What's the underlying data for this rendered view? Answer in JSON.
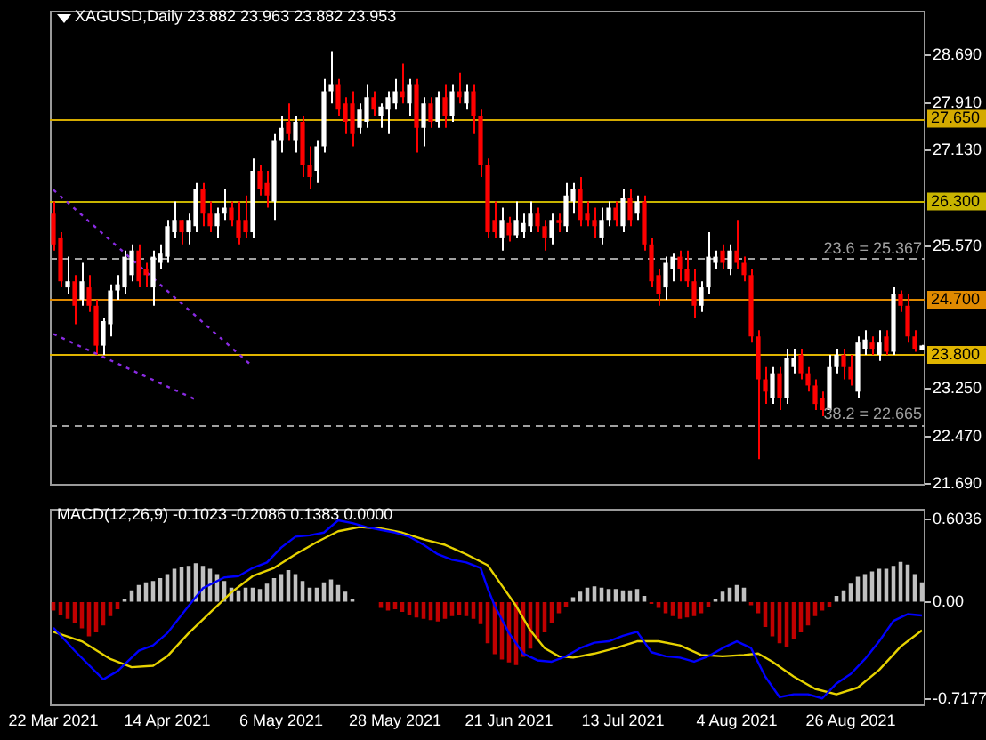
{
  "chart_data": [
    {
      "type": "candlestick",
      "title": "XAGUSD,Daily  23.882 23.963 23.882 23.953",
      "categories": [
        null,
        null,
        null,
        null,
        null,
        null,
        null,
        null,
        null,
        null,
        null,
        null,
        null,
        null,
        null,
        null,
        null,
        null,
        null,
        null,
        null,
        null,
        null,
        null,
        null,
        null,
        null,
        null,
        null,
        null,
        null,
        null,
        null,
        null,
        null,
        null,
        null,
        null,
        null,
        null,
        null,
        null,
        null,
        null,
        null,
        null,
        null,
        null,
        null,
        null,
        null,
        null,
        null,
        null,
        null,
        null,
        null,
        null,
        null,
        null,
        null,
        null,
        null,
        null,
        null,
        null,
        null,
        null,
        null,
        null,
        null,
        null,
        null,
        null,
        null,
        null,
        null,
        null,
        null,
        null,
        null,
        null,
        null,
        null,
        null,
        null,
        null,
        null,
        null,
        null,
        null,
        null,
        null,
        null,
        null,
        null,
        null,
        null,
        null,
        null,
        null,
        null,
        null,
        null,
        null,
        null,
        null,
        null,
        null,
        null,
        null,
        null,
        null,
        null,
        null,
        null,
        null,
        null,
        null,
        null,
        null,
        null,
        null
      ],
      "ohlc": [
        [
          26.1,
          26.3,
          25.5,
          25.6
        ],
        [
          25.7,
          25.8,
          24.9,
          25.0
        ],
        [
          24.9,
          25.4,
          24.8,
          25.0
        ],
        [
          25.0,
          25.1,
          24.3,
          24.6
        ],
        [
          24.7,
          25.3,
          24.6,
          25.0
        ],
        [
          24.9,
          25.1,
          24.5,
          24.6
        ],
        [
          24.6,
          24.7,
          23.8,
          23.95
        ],
        [
          23.95,
          24.4,
          23.8,
          24.35
        ],
        [
          24.3,
          24.95,
          24.1,
          24.85
        ],
        [
          24.85,
          25.1,
          24.7,
          24.95
        ],
        [
          24.9,
          25.5,
          24.8,
          25.4
        ],
        [
          25.1,
          25.6,
          25.0,
          25.5
        ],
        [
          25.5,
          25.6,
          24.9,
          25.0
        ],
        [
          25.2,
          25.3,
          24.9,
          25.1
        ],
        [
          24.9,
          25.5,
          24.6,
          25.4
        ],
        [
          25.3,
          25.6,
          25.2,
          25.45
        ],
        [
          25.4,
          26.0,
          25.3,
          25.9
        ],
        [
          25.8,
          26.3,
          25.7,
          26.0
        ],
        [
          26.0,
          26.0,
          25.6,
          25.8
        ],
        [
          25.8,
          26.1,
          25.6,
          26.0
        ],
        [
          25.9,
          26.6,
          25.8,
          26.5
        ],
        [
          26.5,
          26.6,
          25.9,
          26.1
        ],
        [
          26.1,
          26.3,
          25.8,
          25.9
        ],
        [
          25.9,
          26.2,
          25.7,
          26.1
        ],
        [
          26.1,
          26.5,
          26.0,
          26.2
        ],
        [
          26.2,
          26.3,
          25.9,
          26.0
        ],
        [
          26.0,
          26.3,
          25.6,
          25.7
        ],
        [
          26.0,
          26.4,
          25.7,
          25.8
        ],
        [
          25.8,
          27.0,
          25.7,
          26.8
        ],
        [
          26.8,
          26.9,
          26.4,
          26.5
        ],
        [
          26.6,
          26.8,
          26.2,
          26.4
        ],
        [
          26.3,
          27.4,
          26.0,
          27.3
        ],
        [
          27.3,
          27.7,
          27.1,
          27.5
        ],
        [
          27.6,
          27.9,
          27.3,
          27.4
        ],
        [
          27.3,
          27.7,
          27.1,
          27.6
        ],
        [
          27.6,
          27.7,
          26.7,
          26.9
        ],
        [
          26.9,
          27.2,
          26.5,
          26.7
        ],
        [
          26.8,
          27.3,
          26.6,
          27.2
        ],
        [
          27.2,
          28.3,
          27.1,
          28.1
        ],
        [
          28.1,
          28.75,
          27.9,
          28.2
        ],
        [
          28.2,
          28.3,
          27.7,
          27.8
        ],
        [
          27.9,
          28.0,
          27.4,
          27.6
        ],
        [
          27.9,
          28.1,
          27.2,
          27.4
        ],
        [
          27.5,
          27.9,
          27.4,
          27.8
        ],
        [
          27.6,
          28.2,
          27.5,
          28.0
        ],
        [
          28.0,
          28.1,
          27.7,
          27.8
        ],
        [
          27.7,
          27.9,
          27.5,
          27.85
        ],
        [
          27.8,
          28.1,
          27.4,
          28.0
        ],
        [
          27.9,
          28.3,
          27.8,
          28.1
        ],
        [
          28.1,
          28.55,
          27.9,
          28.0
        ],
        [
          27.9,
          28.3,
          27.7,
          28.2
        ],
        [
          28.2,
          28.3,
          27.1,
          27.5
        ],
        [
          27.5,
          28.0,
          27.2,
          27.9
        ],
        [
          27.9,
          28.0,
          27.5,
          27.6
        ],
        [
          27.6,
          28.1,
          27.5,
          28.0
        ],
        [
          28.0,
          28.2,
          27.5,
          27.7
        ],
        [
          27.7,
          28.2,
          27.6,
          28.1
        ],
        [
          28.1,
          28.4,
          27.9,
          28.0
        ],
        [
          27.9,
          28.2,
          27.8,
          28.1
        ],
        [
          28.1,
          28.2,
          27.4,
          27.7
        ],
        [
          27.7,
          27.8,
          26.7,
          26.9
        ],
        [
          26.9,
          27.0,
          25.7,
          25.8
        ],
        [
          26.0,
          26.3,
          25.7,
          25.8
        ],
        [
          25.7,
          26.2,
          25.5,
          26.0
        ],
        [
          25.95,
          26.05,
          25.65,
          25.75
        ],
        [
          25.75,
          26.3,
          25.7,
          26.0
        ],
        [
          25.8,
          26.1,
          25.7,
          25.95
        ],
        [
          25.9,
          26.3,
          25.8,
          26.1
        ],
        [
          26.1,
          26.2,
          25.8,
          25.9
        ],
        [
          25.9,
          26.0,
          25.5,
          25.7
        ],
        [
          25.7,
          26.1,
          25.6,
          26.0
        ],
        [
          26.0,
          26.1,
          25.8,
          25.95
        ],
        [
          25.9,
          26.6,
          25.8,
          26.4
        ],
        [
          26.3,
          26.6,
          26.1,
          26.5
        ],
        [
          26.5,
          26.7,
          25.9,
          26.0
        ],
        [
          26.1,
          26.3,
          25.9,
          26.0
        ],
        [
          26.0,
          26.2,
          25.7,
          25.9
        ],
        [
          25.7,
          26.2,
          25.6,
          26.0
        ],
        [
          26.0,
          26.3,
          25.9,
          26.2
        ],
        [
          26.2,
          26.3,
          25.9,
          26.0
        ],
        [
          25.9,
          26.5,
          25.8,
          26.35
        ],
        [
          26.35,
          26.5,
          25.9,
          26.0
        ],
        [
          26.1,
          26.4,
          26.0,
          26.3
        ],
        [
          26.3,
          26.4,
          25.5,
          25.6
        ],
        [
          25.6,
          25.7,
          24.9,
          25.0
        ],
        [
          25.1,
          25.2,
          24.6,
          24.8
        ],
        [
          24.9,
          25.4,
          24.7,
          25.3
        ],
        [
          25.2,
          25.45,
          25.0,
          25.4
        ],
        [
          25.4,
          25.5,
          25.0,
          25.2
        ],
        [
          25.2,
          25.5,
          24.9,
          25.0
        ],
        [
          25.0,
          25.2,
          24.4,
          24.6
        ],
        [
          24.6,
          25.0,
          24.5,
          24.9
        ],
        [
          24.9,
          25.8,
          24.8,
          25.4
        ],
        [
          25.3,
          25.5,
          25.2,
          25.4
        ],
        [
          25.5,
          25.6,
          25.2,
          25.3
        ],
        [
          25.2,
          25.6,
          25.1,
          25.5
        ],
        [
          25.5,
          26.0,
          25.2,
          25.3
        ],
        [
          25.3,
          25.4,
          25.0,
          25.1
        ],
        [
          25.1,
          25.2,
          24.0,
          24.1
        ],
        [
          24.1,
          24.2,
          22.1,
          23.4
        ],
        [
          23.4,
          23.6,
          23.0,
          23.2
        ],
        [
          23.1,
          23.6,
          23.0,
          23.5
        ],
        [
          23.5,
          23.6,
          22.9,
          23.1
        ],
        [
          23.1,
          23.9,
          23.0,
          23.75
        ],
        [
          23.6,
          23.9,
          23.5,
          23.75
        ],
        [
          23.8,
          23.9,
          23.4,
          23.5
        ],
        [
          23.5,
          23.6,
          23.2,
          23.3
        ],
        [
          23.3,
          23.4,
          22.9,
          23.0
        ],
        [
          23.1,
          23.2,
          22.8,
          22.9
        ],
        [
          22.9,
          23.8,
          22.9,
          23.6
        ],
        [
          23.6,
          23.9,
          23.5,
          23.8
        ],
        [
          23.8,
          23.9,
          23.4,
          23.6
        ],
        [
          23.6,
          23.8,
          23.3,
          23.4
        ],
        [
          23.2,
          24.1,
          23.1,
          24.0
        ],
        [
          23.9,
          24.2,
          23.8,
          24.05
        ],
        [
          24.0,
          24.1,
          23.8,
          23.9
        ],
        [
          23.8,
          24.2,
          23.7,
          24.0
        ],
        [
          24.1,
          24.2,
          23.8,
          23.85
        ],
        [
          23.85,
          24.9,
          23.8,
          24.8
        ],
        [
          24.8,
          24.85,
          24.5,
          24.6
        ],
        [
          24.6,
          24.8,
          24.0,
          24.1
        ],
        [
          24.1,
          24.2,
          23.85,
          23.9
        ],
        [
          23.882,
          23.963,
          23.882,
          23.953
        ]
      ],
      "colors": [
        "#ff0000",
        "#ff0000",
        "#ffffff",
        "#ff0000",
        "#ffffff",
        "#ff0000",
        "#ff0000",
        "#ffffff",
        "#ffffff",
        "#ffffff",
        "#ffffff",
        "#ffffff",
        "#ff0000",
        "#ff0000",
        "#ffffff",
        "#ffffff",
        "#ffffff",
        "#ffffff",
        "#ff0000",
        "#ffffff",
        "#ffffff",
        "#ff0000",
        "#ff0000",
        "#ffffff",
        "#ffffff",
        "#ff0000",
        "#ff0000",
        "#ff0000",
        "#ffffff",
        "#ff0000",
        "#ff0000",
        "#ffffff",
        "#ffffff",
        "#ff0000",
        "#ffffff",
        "#ff0000",
        "#ff0000",
        "#ffffff",
        "#ffffff",
        "#ffffff",
        "#ff0000",
        "#ff0000",
        "#ff0000",
        "#ffffff",
        "#ffffff",
        "#ff0000",
        "#ffffff",
        "#ffffff",
        "#ffffff",
        "#ff0000",
        "#ffffff",
        "#ff0000",
        "#ffffff",
        "#ff0000",
        "#ffffff",
        "#ff0000",
        "#ffffff",
        "#ff0000",
        "#ffffff",
        "#ff0000",
        "#ff0000",
        "#ff0000",
        "#ff0000",
        "#ffffff",
        "#ff0000",
        "#ffffff",
        "#ffffff",
        "#ffffff",
        "#ff0000",
        "#ff0000",
        "#ffffff",
        "#ff0000",
        "#ffffff",
        "#ffffff",
        "#ff0000",
        "#ff0000",
        "#ff0000",
        "#ffffff",
        "#ffffff",
        "#ff0000",
        "#ffffff",
        "#ff0000",
        "#ffffff",
        "#ff0000",
        "#ff0000",
        "#ff0000",
        "#ffffff",
        "#ffffff",
        "#ff0000",
        "#ff0000",
        "#ff0000",
        "#ffffff",
        "#ffffff",
        "#ffffff",
        "#ff0000",
        "#ffffff",
        "#ff0000",
        "#ff0000",
        "#ff0000",
        "#ff0000",
        "#ff0000",
        "#ffffff",
        "#ff0000",
        "#ffffff",
        "#ffffff",
        "#ff0000",
        "#ff0000",
        "#ff0000",
        "#ff0000",
        "#ffffff",
        "#ffffff",
        "#ff0000",
        "#ff0000",
        "#ffffff",
        "#ffffff",
        "#ff0000",
        "#ffffff",
        "#ff0000",
        "#ffffff",
        "#ff0000",
        "#ff0000",
        "#ff0000",
        "#ffffff"
      ],
      "series": [
        {
          "type": "line",
          "color": "#8a2be2",
          "line_style": "dotted",
          "values": [
            26.49,
            null,
            null,
            null,
            null,
            null,
            null,
            null,
            null,
            null,
            null,
            null,
            null,
            null,
            null,
            null,
            null,
            null,
            null,
            null,
            null,
            null,
            null,
            null,
            null,
            null,
            null,
            null,
            23.61,
            null,
            null,
            null,
            null,
            null,
            null,
            null,
            null,
            null,
            null,
            null,
            null,
            null,
            null,
            null,
            null,
            null,
            null,
            null,
            null,
            null,
            null,
            null,
            null,
            null,
            null,
            null,
            null,
            null,
            null,
            null,
            null,
            null,
            null,
            null,
            null,
            null,
            null,
            null,
            null,
            null,
            null,
            null,
            null,
            null,
            null,
            null,
            null,
            null,
            null,
            null,
            null,
            null,
            null,
            null,
            null,
            null,
            null,
            null,
            null,
            null,
            null,
            null,
            null,
            null,
            null,
            null,
            null,
            null,
            null,
            null,
            null,
            null,
            null,
            null,
            null,
            null,
            null,
            null,
            null,
            null,
            null,
            null,
            null,
            null,
            null,
            null,
            null,
            null,
            null,
            null,
            null,
            null,
            null
          ]
        },
        {
          "type": "line",
          "color": "#8a2be2",
          "line_style": "dotted",
          "values": [
            24.14,
            null,
            null,
            null,
            null,
            null,
            null,
            null,
            null,
            null,
            null,
            null,
            null,
            null,
            null,
            null,
            null,
            null,
            null,
            null,
            23.07,
            null,
            null,
            null,
            null,
            null,
            null,
            null,
            null,
            null,
            null,
            null,
            null,
            null,
            null,
            null,
            null,
            null,
            null,
            null,
            null,
            null,
            null,
            null,
            null,
            null,
            null,
            null,
            null,
            null,
            null,
            null,
            null,
            null,
            null,
            null,
            null,
            null,
            null,
            null,
            null,
            null,
            null,
            null,
            null,
            null,
            null,
            null,
            null,
            null,
            null,
            null,
            null,
            null,
            null,
            null,
            null,
            null,
            null,
            null,
            null,
            null,
            null,
            null,
            null,
            null,
            null,
            null,
            null,
            null,
            null,
            null,
            null,
            null,
            null,
            null,
            null,
            null,
            null,
            null,
            null,
            null,
            null,
            null,
            null,
            null,
            null,
            null,
            null,
            null,
            null,
            null,
            null,
            null,
            null,
            null,
            null,
            null,
            null,
            null,
            null,
            null,
            null
          ]
        }
      ],
      "ylim": [
        21.65,
        29.4
      ],
      "yticks": [
        {
          "value": 21.69,
          "label": "21.690"
        },
        {
          "value": 22.47,
          "label": "22.470"
        },
        {
          "value": 23.25,
          "label": "23.250"
        },
        {
          "value": 25.57,
          "label": "25.570"
        },
        {
          "value": 27.13,
          "label": "27.130"
        },
        {
          "value": 27.91,
          "label": "27.910"
        },
        {
          "value": 28.69,
          "label": "28.690"
        }
      ],
      "tick_labels": "y",
      "ref_lines": [
        {
          "axis": "y",
          "value": 27.65,
          "label": "27.650",
          "color": "#d4aa00"
        },
        {
          "axis": "y",
          "value": 26.3,
          "label": "26.300",
          "color": "#c8b400"
        },
        {
          "axis": "y",
          "value": 25.367,
          "label": "23.6 = 25.367",
          "color": "#a0a0a0",
          "line_style": "dashed"
        },
        {
          "axis": "y",
          "value": 24.7,
          "label": "24.700",
          "color": "#e08a00"
        },
        {
          "axis": "y",
          "value": 23.8,
          "label": "23.800",
          "color": "#e0b400"
        },
        {
          "axis": "y",
          "value": 22.665,
          "label": "38.2 = 22.665",
          "color": "#a0a0a0",
          "line_style": "dashed"
        }
      ]
    },
    {
      "type": "bar",
      "title": "MACD(12,26,9) -0.1023 -0.2086 0.1383 0.0000",
      "categories": [
        "22 Mar 2021",
        null,
        null,
        null,
        null,
        null,
        null,
        null,
        null,
        null,
        null,
        null,
        null,
        null,
        null,
        null,
        "14 Apr 2021",
        null,
        null,
        null,
        null,
        null,
        null,
        null,
        null,
        null,
        null,
        null,
        null,
        null,
        null,
        null,
        "6 May 2021",
        null,
        null,
        null,
        null,
        null,
        null,
        null,
        null,
        null,
        null,
        null,
        null,
        null,
        null,
        null,
        "28 May 2021",
        null,
        null,
        null,
        null,
        null,
        null,
        null,
        null,
        null,
        null,
        null,
        null,
        null,
        null,
        null,
        "21 Jun 2021",
        null,
        null,
        null,
        null,
        null,
        null,
        null,
        null,
        null,
        null,
        null,
        null,
        null,
        null,
        null,
        "13 Jul 2021",
        null,
        null,
        null,
        null,
        null,
        null,
        null,
        null,
        null,
        null,
        null,
        null,
        null,
        null,
        null,
        "4 Aug 2021",
        null,
        null,
        null,
        null,
        null,
        null,
        null,
        null,
        null,
        null,
        null,
        null,
        null,
        null,
        null,
        "26 Aug 2021",
        null,
        null,
        null,
        null,
        null,
        null,
        null,
        null,
        null,
        null
      ],
      "series": [
        {
          "type": "bar",
          "values": [
            -0.06,
            -0.09,
            -0.12,
            -0.15,
            -0.19,
            -0.25,
            -0.22,
            -0.17,
            -0.1,
            -0.05,
            0.02,
            0.08,
            0.12,
            0.14,
            0.15,
            0.17,
            0.2,
            0.24,
            0.25,
            0.26,
            0.28,
            0.26,
            0.24,
            0.2,
            0.15,
            0.1,
            0.08,
            0.1,
            0.1,
            0.09,
            0.13,
            0.17,
            0.2,
            0.23,
            0.2,
            0.15,
            0.1,
            0.1,
            0.14,
            0.16,
            0.12,
            0.07,
            0.02,
            null,
            null,
            null,
            -0.04,
            -0.06,
            -0.05,
            -0.07,
            -0.09,
            -0.11,
            -0.12,
            -0.13,
            -0.14,
            -0.12,
            -0.1,
            -0.09,
            -0.1,
            -0.12,
            -0.16,
            -0.3,
            -0.38,
            -0.42,
            -0.44,
            -0.46,
            -0.4,
            -0.34,
            -0.28,
            -0.22,
            -0.15,
            -0.08,
            -0.03,
            0.03,
            0.07,
            0.1,
            0.11,
            0.1,
            0.09,
            0.09,
            0.08,
            0.08,
            0.09,
            0.04,
            -0.01,
            -0.04,
            -0.08,
            -0.1,
            -0.12,
            -0.11,
            -0.1,
            -0.08,
            -0.03,
            0.02,
            0.07,
            0.1,
            0.12,
            0.1,
            -0.02,
            -0.08,
            -0.18,
            -0.25,
            -0.3,
            -0.33,
            -0.27,
            -0.22,
            -0.17,
            -0.1,
            -0.06,
            -0.03,
            0.04,
            0.08,
            0.13,
            0.18,
            0.2,
            0.22,
            0.24,
            0.24,
            0.26,
            0.29,
            0.27,
            0.2,
            0.14
          ],
          "colors": [
            "#c00000",
            "#c00000",
            "#c00000",
            "#c00000",
            "#c00000",
            "#c00000",
            "#c00000",
            "#c00000",
            "#c00000",
            "#c00000",
            "#c0c0c0",
            "#c0c0c0",
            "#c0c0c0",
            "#c0c0c0",
            "#c0c0c0",
            "#c0c0c0",
            "#c0c0c0",
            "#c0c0c0",
            "#c0c0c0",
            "#c0c0c0",
            "#c0c0c0",
            "#c0c0c0",
            "#c0c0c0",
            "#c0c0c0",
            "#c0c0c0",
            "#c0c0c0",
            "#c0c0c0",
            "#c0c0c0",
            "#c0c0c0",
            "#c0c0c0",
            "#c0c0c0",
            "#c0c0c0",
            "#c0c0c0",
            "#c0c0c0",
            "#c0c0c0",
            "#c0c0c0",
            "#c0c0c0",
            "#c0c0c0",
            "#c0c0c0",
            "#c0c0c0",
            "#c0c0c0",
            "#c0c0c0",
            "#c0c0c0",
            "#c0c0c0",
            "#c0c0c0",
            "#c0c0c0",
            "#c00000",
            "#c00000",
            "#c00000",
            "#c00000",
            "#c00000",
            "#c00000",
            "#c00000",
            "#c00000",
            "#c00000",
            "#c00000",
            "#c00000",
            "#c00000",
            "#c00000",
            "#c00000",
            "#c00000",
            "#c00000",
            "#c00000",
            "#c00000",
            "#c00000",
            "#c00000",
            "#c00000",
            "#c00000",
            "#c00000",
            "#c00000",
            "#c00000",
            "#c00000",
            "#c00000",
            "#c0c0c0",
            "#c0c0c0",
            "#c0c0c0",
            "#c0c0c0",
            "#c0c0c0",
            "#c0c0c0",
            "#c0c0c0",
            "#c0c0c0",
            "#c0c0c0",
            "#c0c0c0",
            "#c0c0c0",
            "#c00000",
            "#c00000",
            "#c00000",
            "#c00000",
            "#c00000",
            "#c00000",
            "#c00000",
            "#c00000",
            "#c00000",
            "#c0c0c0",
            "#c0c0c0",
            "#c0c0c0",
            "#c0c0c0",
            "#c0c0c0",
            "#c00000",
            "#c00000",
            "#c00000",
            "#c00000",
            "#c00000",
            "#c00000",
            "#c00000",
            "#c00000",
            "#c00000",
            "#c00000",
            "#c00000",
            "#c00000",
            "#c0c0c0",
            "#c0c0c0",
            "#c0c0c0",
            "#c0c0c0",
            "#c0c0c0",
            "#c0c0c0",
            "#c0c0c0",
            "#c0c0c0",
            "#c0c0c0",
            "#c0c0c0",
            "#c0c0c0",
            "#c0c0c0",
            "#c0c0c0"
          ]
        },
        {
          "type": "line",
          "color": "#0000ff",
          "values": [
            -0.19,
            null,
            null,
            -0.36,
            null,
            null,
            null,
            -0.57,
            null,
            -0.51,
            null,
            null,
            -0.36,
            null,
            -0.32,
            null,
            -0.23,
            null,
            null,
            -0.03,
            null,
            0.1,
            null,
            null,
            0.18,
            null,
            0.19,
            null,
            0.25,
            null,
            0.29,
            null,
            0.4,
            null,
            0.48,
            null,
            0.49,
            null,
            0.51,
            null,
            0.6,
            null,
            0.58,
            null,
            0.55,
            null,
            0.53,
            null,
            0.51,
            null,
            0.48,
            null,
            0.42,
            null,
            0.35,
            null,
            0.31,
            null,
            0.29,
            null,
            0.25,
            0.1,
            -0.03,
            null,
            -0.23,
            null,
            -0.38,
            null,
            -0.43,
            null,
            -0.44,
            null,
            -0.4,
            null,
            -0.34,
            null,
            -0.3,
            null,
            -0.29,
            null,
            -0.25,
            null,
            -0.22,
            null,
            -0.37,
            null,
            -0.4,
            null,
            -0.41,
            null,
            -0.44,
            null,
            -0.4,
            null,
            -0.34,
            null,
            -0.29,
            null,
            -0.34,
            null,
            -0.55,
            null,
            -0.7,
            null,
            -0.68,
            null,
            -0.68,
            null,
            -0.71,
            null,
            -0.6,
            null,
            -0.53,
            null,
            -0.42,
            null,
            -0.29,
            null,
            -0.14,
            null,
            -0.09,
            null,
            -0.1
          ]
        },
        {
          "type": "line",
          "color": "#e6d200",
          "values": [
            -0.22,
            null,
            null,
            null,
            -0.29,
            null,
            null,
            null,
            -0.42,
            null,
            null,
            -0.48,
            null,
            null,
            -0.47,
            null,
            -0.4,
            null,
            null,
            -0.23,
            null,
            null,
            -0.08,
            null,
            null,
            0.07,
            null,
            null,
            0.19,
            null,
            null,
            0.25,
            null,
            null,
            0.35,
            null,
            null,
            0.44,
            null,
            null,
            0.52,
            null,
            null,
            0.55,
            null,
            null,
            0.54,
            null,
            null,
            0.51,
            null,
            null,
            0.46,
            null,
            null,
            0.42,
            null,
            null,
            0.35,
            null,
            null,
            0.27,
            null,
            0.12,
            null,
            -0.03,
            null,
            -0.21,
            null,
            -0.34,
            null,
            -0.4,
            null,
            -0.41,
            null,
            null,
            -0.38,
            null,
            null,
            -0.34,
            null,
            null,
            -0.29,
            null,
            null,
            -0.29,
            null,
            null,
            -0.32,
            null,
            null,
            -0.39,
            null,
            null,
            -0.4,
            null,
            null,
            -0.39,
            null,
            -0.38,
            null,
            -0.44,
            null,
            null,
            -0.55,
            null,
            null,
            -0.64,
            null,
            null,
            -0.68,
            null,
            null,
            -0.63,
            null,
            null,
            -0.5,
            null,
            null,
            -0.33,
            null,
            null,
            -0.21
          ]
        }
      ],
      "ylim": [
        -0.77,
        0.68
      ],
      "yticks": [
        -0.7177,
        {
          "value": 0,
          "label": "0.00"
        },
        0.6036
      ]
    }
  ]
}
